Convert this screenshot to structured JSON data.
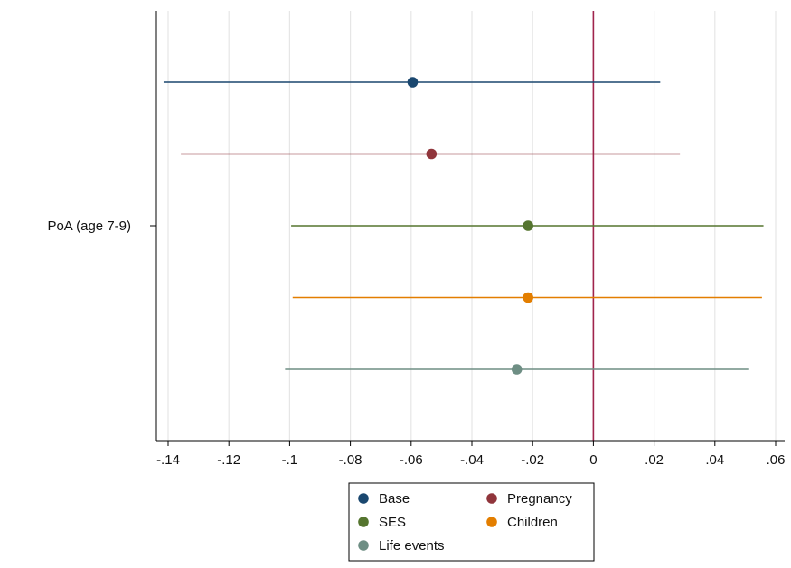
{
  "chart_data": {
    "type": "coefficient-plot",
    "category": "PoA (age 7-9)",
    "x_ticks": [
      -0.14,
      -0.12,
      -0.1,
      -0.08,
      -0.06,
      -0.04,
      -0.02,
      0,
      0.02,
      0.04,
      0.06
    ],
    "x_tick_labels": [
      "-.14",
      "-.12",
      "-.1",
      "-.08",
      "-.06",
      "-.04",
      "-.02",
      "0",
      ".02",
      ".04",
      ".06"
    ],
    "xlim": [
      -0.1435,
      0.0605
    ],
    "reference_line": 0,
    "grid": true,
    "legend_position": "bottom",
    "series": [
      {
        "name": "Base",
        "estimate": -0.0595,
        "ci_low": -0.1415,
        "ci_high": 0.022,
        "color": "#1a476f"
      },
      {
        "name": "Pregnancy",
        "estimate": -0.0533,
        "ci_low": -0.1358,
        "ci_high": 0.0285,
        "color": "#90353b"
      },
      {
        "name": "SES",
        "estimate": -0.0215,
        "ci_low": -0.0995,
        "ci_high": 0.056,
        "color": "#55752f"
      },
      {
        "name": "Children",
        "estimate": -0.0215,
        "ci_low": -0.099,
        "ci_high": 0.0555,
        "color": "#e37e00"
      },
      {
        "name": "Life events",
        "estimate": -0.0252,
        "ci_low": -0.1015,
        "ci_high": 0.051,
        "color": "#6e8e84"
      }
    ],
    "reference_line_color": "#a0244d"
  }
}
